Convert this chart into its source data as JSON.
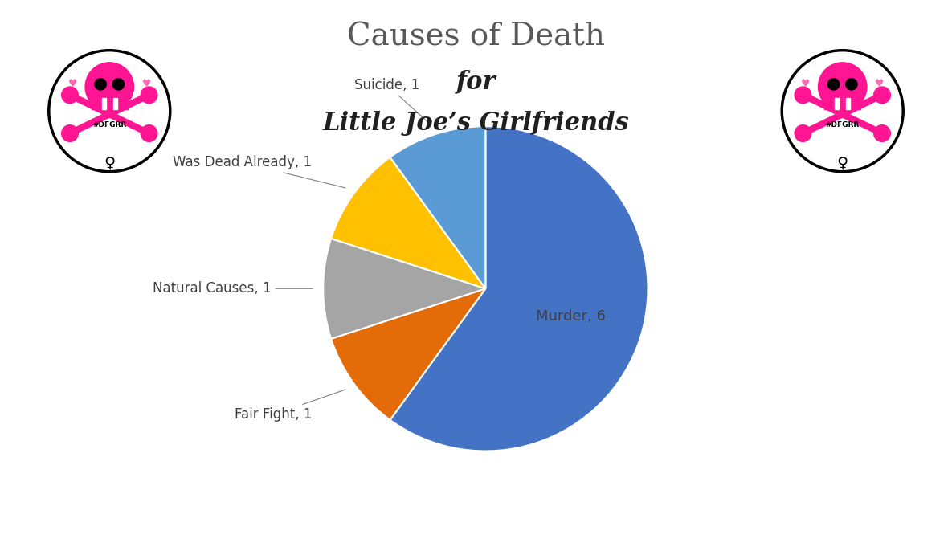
{
  "title_line1": "Causes of Death",
  "title_line2": "for",
  "title_line3": "Little Joe’s Girlfriends",
  "labels": [
    "Murder",
    "Fair Fight",
    "Natural Causes",
    "Was Dead Already",
    "Suicide"
  ],
  "values": [
    6,
    1,
    1,
    1,
    1
  ],
  "colors": [
    "#4472C4",
    "#E36C09",
    "#A5A5A5",
    "#FFC000",
    "#5B9BD5"
  ],
  "background_color": "#FFFFFF",
  "startangle": 90,
  "label_fontsize": 12,
  "title_fontsize1": 28,
  "title_fontsize2": 22,
  "title_fontsize3": 22,
  "skull_color": "#FF1493",
  "skull_pink_light": "#FF69B4"
}
